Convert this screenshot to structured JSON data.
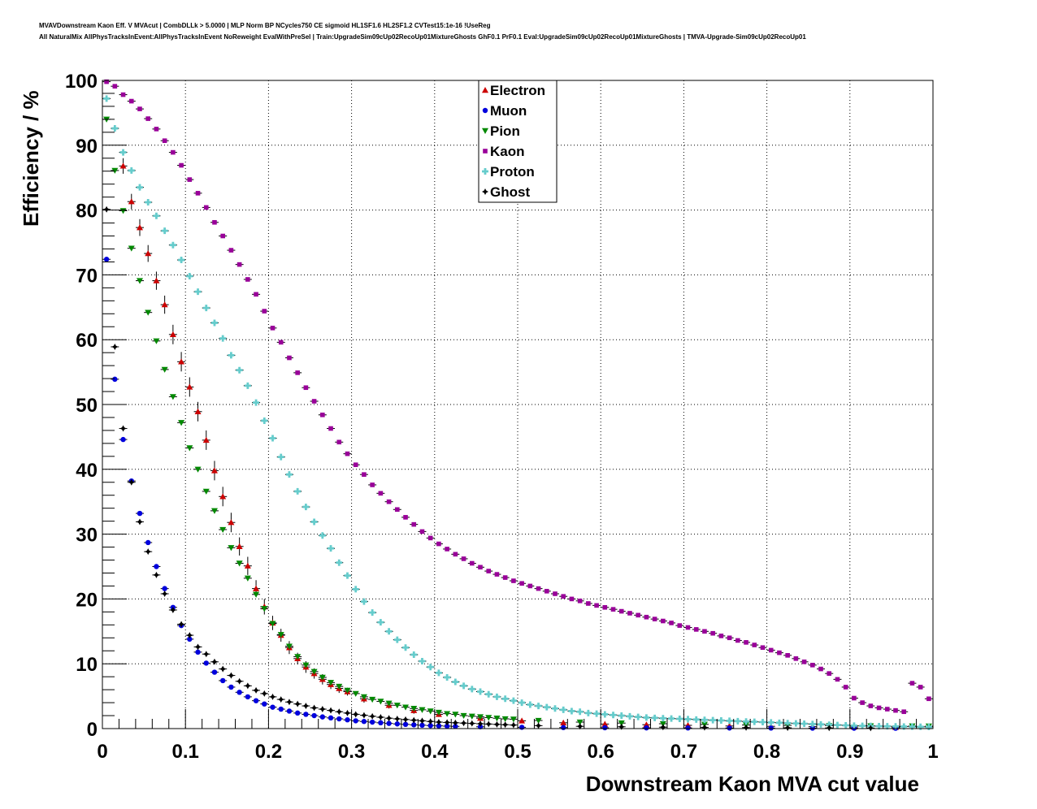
{
  "header": {
    "line1": "MVAVDownstream Kaon Eff. V MVAcut | CombDLLk > 5.0000 | MLP Norm BP NCycles750 CE sigmoid HL1SF1.6 HL2SF1.2 CVTest15:1e-16 !UseReg",
    "line2": "All NaturalMix AllPhysTracksInEvent:AllPhysTracksInEvent NoReweight EvalWithPreSel | Train:UpgradeSim09cUp02RecoUp01MixtureGhosts GhF0.1 PrF0.1 Eval:UpgradeSim09cUp02RecoUp01MixtureGhosts | TMVA-Upgrade-Sim09cUp02RecoUp01"
  },
  "chart_data": {
    "type": "scatter",
    "xlabel": "Downstream Kaon MVA cut value",
    "ylabel": "Efficiency / %",
    "xlim": [
      0,
      1
    ],
    "ylim": [
      0,
      100
    ],
    "xticks": [
      0,
      0.1,
      0.2,
      0.3,
      0.4,
      0.5,
      0.6,
      0.7,
      0.8,
      0.9,
      1
    ],
    "xtick_labels": [
      "0",
      "0.1",
      "0.2",
      "0.3",
      "0.4",
      "0.5",
      "0.6",
      "0.7",
      "0.8",
      "0.9",
      "1"
    ],
    "yticks": [
      0,
      10,
      20,
      30,
      40,
      50,
      60,
      70,
      80,
      90,
      100
    ],
    "ytick_labels": [
      "0",
      "10",
      "20",
      "30",
      "40",
      "50",
      "60",
      "70",
      "80",
      "90",
      "100"
    ],
    "grid": true,
    "legend_position": "top-center",
    "series": [
      {
        "name": "Electron",
        "color": "#cc0000",
        "marker": "triangle-up",
        "x": [
          0.025,
          0.035,
          0.045,
          0.055,
          0.065,
          0.075,
          0.085,
          0.095,
          0.105,
          0.115,
          0.125,
          0.135,
          0.145,
          0.155,
          0.165,
          0.175,
          0.185,
          0.195,
          0.205,
          0.215,
          0.225,
          0.235,
          0.245,
          0.255,
          0.265,
          0.275,
          0.285,
          0.295,
          0.315,
          0.345,
          0.375,
          0.405,
          0.455,
          0.505,
          0.555,
          0.605,
          0.655,
          0.705,
          0.755,
          0.805,
          0.855,
          0.905,
          0.955
        ],
        "y": [
          86.8,
          81.3,
          77.3,
          73.3,
          69.1,
          65.4,
          60.8,
          56.6,
          52.7,
          48.9,
          44.5,
          39.8,
          35.8,
          31.8,
          28.1,
          25.1,
          21.6,
          18.8,
          16.3,
          14.4,
          12.5,
          10.8,
          9.5,
          8.5,
          7.6,
          6.8,
          6.2,
          5.7,
          4.6,
          3.6,
          2.8,
          2.2,
          1.6,
          1.2,
          0.9,
          0.7,
          0.6,
          0.5,
          0.4,
          0.35,
          0.3,
          0.25,
          0.2
        ],
        "err": [
          1.2,
          1.2,
          1.3,
          1.3,
          1.4,
          1.4,
          1.5,
          1.5,
          1.5,
          1.5,
          1.5,
          1.5,
          1.5,
          1.5,
          1.4,
          1.4,
          1.3,
          1.2,
          1.1,
          1.0,
          1.0,
          0.9,
          0.9,
          0.8,
          0.8,
          0.7,
          0.7,
          0.6,
          0.6,
          0.5,
          0.5,
          0.4,
          0.3,
          0.3,
          0.2,
          0.2,
          0.2,
          0.2,
          0.1,
          0.1,
          0.1,
          0.1,
          0.1
        ]
      },
      {
        "name": "Muon",
        "color": "#0000dd",
        "marker": "circle",
        "x": [
          0.005,
          0.015,
          0.025,
          0.035,
          0.045,
          0.055,
          0.065,
          0.075,
          0.085,
          0.095,
          0.105,
          0.115,
          0.125,
          0.135,
          0.145,
          0.155,
          0.165,
          0.175,
          0.185,
          0.195,
          0.205,
          0.215,
          0.225,
          0.235,
          0.245,
          0.255,
          0.265,
          0.275,
          0.285,
          0.295,
          0.305,
          0.315,
          0.325,
          0.335,
          0.345,
          0.355,
          0.365,
          0.375,
          0.385,
          0.395,
          0.405,
          0.415,
          0.425,
          0.455,
          0.505,
          0.555,
          0.605,
          0.655,
          0.705,
          0.755,
          0.805,
          0.855,
          0.905,
          0.955
        ],
        "y": [
          72.4,
          53.9,
          44.6,
          38.2,
          33.2,
          28.7,
          25.0,
          21.6,
          18.7,
          15.9,
          13.8,
          11.8,
          10.1,
          8.7,
          7.4,
          6.4,
          5.6,
          4.9,
          4.3,
          3.8,
          3.3,
          3.0,
          2.7,
          2.4,
          2.2,
          2.0,
          1.8,
          1.65,
          1.5,
          1.35,
          1.2,
          1.1,
          1.0,
          0.9,
          0.8,
          0.72,
          0.65,
          0.58,
          0.52,
          0.47,
          0.42,
          0.38,
          0.34,
          0.28,
          0.2,
          0.16,
          0.13,
          0.11,
          0.1,
          0.09,
          0.08,
          0.07,
          0.06,
          0.05
        ]
      },
      {
        "name": "Pion",
        "color": "#008800",
        "marker": "triangle-down",
        "x": [
          0.005,
          0.015,
          0.025,
          0.035,
          0.045,
          0.055,
          0.065,
          0.075,
          0.085,
          0.095,
          0.105,
          0.115,
          0.125,
          0.135,
          0.145,
          0.155,
          0.165,
          0.175,
          0.185,
          0.195,
          0.205,
          0.215,
          0.225,
          0.235,
          0.245,
          0.255,
          0.265,
          0.275,
          0.285,
          0.295,
          0.305,
          0.315,
          0.325,
          0.335,
          0.345,
          0.355,
          0.365,
          0.375,
          0.385,
          0.395,
          0.405,
          0.415,
          0.425,
          0.435,
          0.445,
          0.455,
          0.465,
          0.475,
          0.485,
          0.495,
          0.525,
          0.575,
          0.625,
          0.675,
          0.725,
          0.775,
          0.825,
          0.875,
          0.925,
          0.975,
          0.995
        ],
        "y": [
          94.0,
          86.1,
          79.9,
          74.1,
          69.1,
          64.2,
          59.8,
          55.4,
          51.2,
          47.2,
          43.3,
          40.0,
          36.6,
          33.6,
          30.7,
          27.9,
          25.5,
          23.2,
          20.7,
          18.5,
          16.2,
          14.5,
          12.7,
          11.1,
          9.8,
          8.8,
          7.9,
          7.1,
          6.5,
          5.9,
          5.4,
          4.9,
          4.5,
          4.2,
          3.9,
          3.6,
          3.3,
          3.1,
          2.9,
          2.7,
          2.5,
          2.3,
          2.2,
          2.0,
          1.9,
          1.8,
          1.7,
          1.6,
          1.5,
          1.45,
          1.25,
          1.0,
          0.85,
          0.75,
          0.65,
          0.55,
          0.5,
          0.45,
          0.42,
          0.4,
          0.38
        ]
      },
      {
        "name": "Kaon",
        "color": "#990099",
        "marker": "square",
        "x": [
          0.005,
          0.015,
          0.025,
          0.035,
          0.045,
          0.055,
          0.065,
          0.075,
          0.085,
          0.095,
          0.105,
          0.115,
          0.125,
          0.135,
          0.145,
          0.155,
          0.165,
          0.175,
          0.185,
          0.195,
          0.205,
          0.215,
          0.225,
          0.235,
          0.245,
          0.255,
          0.265,
          0.275,
          0.285,
          0.295,
          0.305,
          0.315,
          0.325,
          0.335,
          0.345,
          0.355,
          0.365,
          0.375,
          0.385,
          0.395,
          0.405,
          0.415,
          0.425,
          0.435,
          0.445,
          0.455,
          0.465,
          0.475,
          0.485,
          0.495,
          0.505,
          0.515,
          0.525,
          0.535,
          0.545,
          0.555,
          0.565,
          0.575,
          0.585,
          0.595,
          0.605,
          0.615,
          0.625,
          0.635,
          0.645,
          0.655,
          0.665,
          0.675,
          0.685,
          0.695,
          0.705,
          0.715,
          0.725,
          0.735,
          0.745,
          0.755,
          0.765,
          0.775,
          0.785,
          0.795,
          0.805,
          0.815,
          0.825,
          0.835,
          0.845,
          0.855,
          0.865,
          0.875,
          0.885,
          0.895,
          0.905,
          0.915,
          0.925,
          0.935,
          0.945,
          0.955,
          0.965,
          0.975,
          0.985,
          0.995
        ],
        "y": [
          99.8,
          99.1,
          97.8,
          96.8,
          95.6,
          94.1,
          92.5,
          90.7,
          88.9,
          86.9,
          84.7,
          82.6,
          80.4,
          78.1,
          76.0,
          73.8,
          71.6,
          69.3,
          67.0,
          64.4,
          61.8,
          59.6,
          57.2,
          54.9,
          52.6,
          50.5,
          48.4,
          46.3,
          44.2,
          42.4,
          40.7,
          39.2,
          37.6,
          36.3,
          35.0,
          33.8,
          32.6,
          31.5,
          30.4,
          29.4,
          28.5,
          27.7,
          26.9,
          26.2,
          25.5,
          24.9,
          24.3,
          23.8,
          23.3,
          22.8,
          22.4,
          22.0,
          21.6,
          21.2,
          20.8,
          20.4,
          20.0,
          19.7,
          19.3,
          19.0,
          18.7,
          18.4,
          18.1,
          17.8,
          17.5,
          17.2,
          16.9,
          16.6,
          16.3,
          15.9,
          15.6,
          15.3,
          15.0,
          14.7,
          14.3,
          14.0,
          13.6,
          13.3,
          12.9,
          12.5,
          12.1,
          11.7,
          11.3,
          10.8,
          10.3,
          9.8,
          9.2,
          8.5,
          7.6,
          6.4,
          4.7,
          4.0,
          3.5,
          3.2,
          3.0,
          2.8,
          2.6,
          7.0,
          6.4,
          4.6
        ]
      },
      {
        "name": "Proton",
        "color": "#66cccc",
        "marker": "cross",
        "x": [
          0.005,
          0.015,
          0.025,
          0.035,
          0.045,
          0.055,
          0.065,
          0.075,
          0.085,
          0.095,
          0.105,
          0.115,
          0.125,
          0.135,
          0.145,
          0.155,
          0.165,
          0.175,
          0.185,
          0.195,
          0.205,
          0.215,
          0.225,
          0.235,
          0.245,
          0.255,
          0.265,
          0.275,
          0.285,
          0.295,
          0.305,
          0.315,
          0.325,
          0.335,
          0.345,
          0.355,
          0.365,
          0.375,
          0.385,
          0.395,
          0.405,
          0.415,
          0.425,
          0.435,
          0.445,
          0.455,
          0.465,
          0.475,
          0.485,
          0.495,
          0.505,
          0.515,
          0.525,
          0.535,
          0.545,
          0.555,
          0.565,
          0.575,
          0.585,
          0.595,
          0.605,
          0.615,
          0.625,
          0.635,
          0.645,
          0.655,
          0.665,
          0.675,
          0.685,
          0.695,
          0.705,
          0.715,
          0.725,
          0.735,
          0.745,
          0.755,
          0.765,
          0.775,
          0.785,
          0.795,
          0.805,
          0.815,
          0.825,
          0.835,
          0.845,
          0.855,
          0.865,
          0.875,
          0.885,
          0.895,
          0.905,
          0.915,
          0.925,
          0.935,
          0.945,
          0.955,
          0.965,
          0.975,
          0.985,
          0.995
        ],
        "y": [
          97.2,
          92.6,
          88.9,
          86.1,
          83.5,
          81.2,
          79.1,
          76.8,
          74.6,
          72.3,
          69.8,
          67.4,
          64.9,
          62.6,
          60.2,
          57.6,
          55.3,
          52.9,
          50.3,
          47.5,
          44.8,
          41.9,
          39.2,
          36.6,
          34.2,
          31.9,
          29.8,
          27.8,
          25.6,
          23.6,
          21.5,
          19.6,
          17.9,
          16.4,
          15.0,
          13.7,
          12.5,
          11.4,
          10.4,
          9.5,
          8.6,
          7.9,
          7.2,
          6.6,
          6.1,
          5.7,
          5.3,
          4.9,
          4.6,
          4.3,
          4.0,
          3.7,
          3.5,
          3.3,
          3.1,
          2.9,
          2.7,
          2.6,
          2.4,
          2.3,
          2.2,
          2.1,
          2.0,
          1.9,
          1.8,
          1.7,
          1.65,
          1.6,
          1.55,
          1.5,
          1.45,
          1.4,
          1.35,
          1.3,
          1.25,
          1.2,
          1.15,
          1.1,
          1.05,
          1.0,
          0.95,
          0.9,
          0.85,
          0.8,
          0.75,
          0.7,
          0.65,
          0.6,
          0.55,
          0.5,
          0.45,
          0.42,
          0.4,
          0.38,
          0.36,
          0.34,
          0.32,
          0.3,
          0.28,
          0.26
        ]
      },
      {
        "name": "Ghost",
        "color": "#000000",
        "marker": "star",
        "x": [
          0.005,
          0.015,
          0.025,
          0.035,
          0.045,
          0.055,
          0.065,
          0.075,
          0.085,
          0.095,
          0.105,
          0.115,
          0.125,
          0.135,
          0.145,
          0.155,
          0.165,
          0.175,
          0.185,
          0.195,
          0.205,
          0.215,
          0.225,
          0.235,
          0.245,
          0.255,
          0.265,
          0.275,
          0.285,
          0.295,
          0.305,
          0.315,
          0.325,
          0.335,
          0.345,
          0.355,
          0.365,
          0.375,
          0.385,
          0.395,
          0.405,
          0.415,
          0.425,
          0.435,
          0.445,
          0.455,
          0.465,
          0.475,
          0.485,
          0.495,
          0.525,
          0.575,
          0.625,
          0.675,
          0.725,
          0.775,
          0.825,
          0.875,
          0.925
        ],
        "y": [
          80.1,
          58.9,
          46.3,
          38.0,
          31.9,
          27.3,
          23.7,
          20.8,
          18.3,
          16.1,
          14.4,
          12.6,
          11.5,
          10.3,
          9.2,
          8.2,
          7.3,
          6.6,
          5.9,
          5.4,
          4.9,
          4.5,
          4.1,
          3.8,
          3.5,
          3.2,
          3.0,
          2.8,
          2.6,
          2.4,
          2.2,
          2.05,
          1.9,
          1.75,
          1.6,
          1.5,
          1.4,
          1.3,
          1.2,
          1.1,
          1.0,
          0.95,
          0.9,
          0.85,
          0.8,
          0.75,
          0.7,
          0.65,
          0.6,
          0.55,
          0.45,
          0.35,
          0.28,
          0.22,
          0.18,
          0.15,
          0.12,
          0.1,
          0.08
        ]
      }
    ]
  }
}
